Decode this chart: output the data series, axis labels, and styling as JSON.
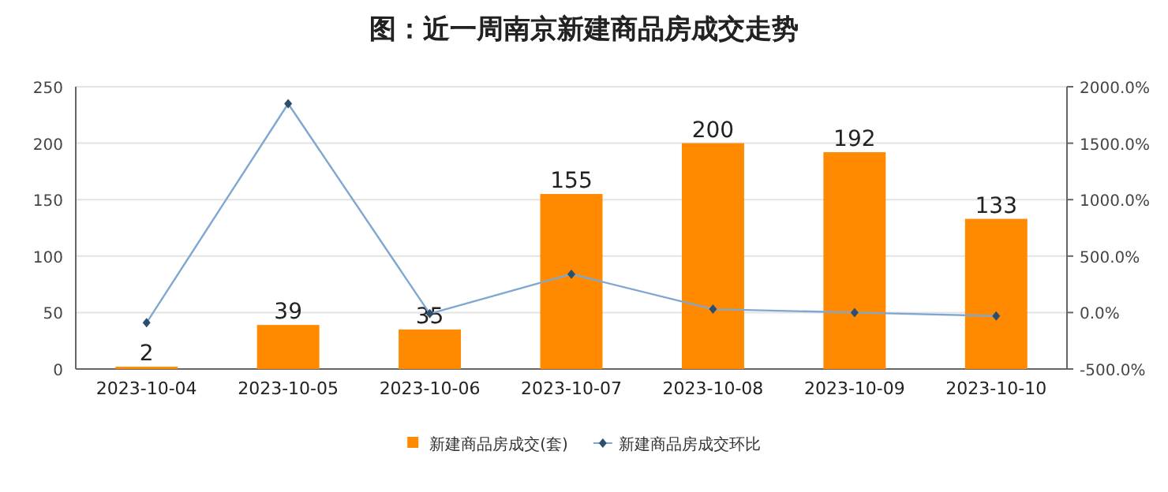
{
  "chart_data": {
    "type": "bar",
    "title": "图：近一周南京新建商品房成交走势",
    "categories": [
      "2023-10-04",
      "2023-10-05",
      "2023-10-06",
      "2023-10-07",
      "2023-10-08",
      "2023-10-09",
      "2023-10-10"
    ],
    "series": [
      {
        "name": "新建商品房成交(套)",
        "color": "#ff8a00",
        "values": [
          2,
          39,
          35,
          155,
          200,
          192,
          133
        ],
        "value_labels": [
          "2",
          "39",
          "35",
          "155",
          "200",
          "192",
          "133"
        ]
      },
      {
        "name": "新建商品房成交环比",
        "type": "line",
        "axis": "y2",
        "color": "#7fa7d1",
        "marker": "diamond",
        "values": [
          -90,
          1850,
          -10,
          340,
          30,
          0,
          -30
        ]
      }
    ],
    "ylim": [
      0,
      250
    ],
    "yticks": [
      0,
      50,
      100,
      150,
      200,
      250
    ],
    "y2lim": [
      -500,
      2000
    ],
    "y2ticks": [
      {
        "value": -500,
        "label": "-500.0%"
      },
      {
        "value": 0,
        "label": "0.0%"
      },
      {
        "value": 500,
        "label": "500.0%"
      },
      {
        "value": 1000,
        "label": "1000.0%"
      },
      {
        "value": 1500,
        "label": "1500.0%"
      },
      {
        "value": 2000,
        "label": "2000.0%"
      }
    ],
    "grid": "y",
    "legend": "bottom"
  }
}
